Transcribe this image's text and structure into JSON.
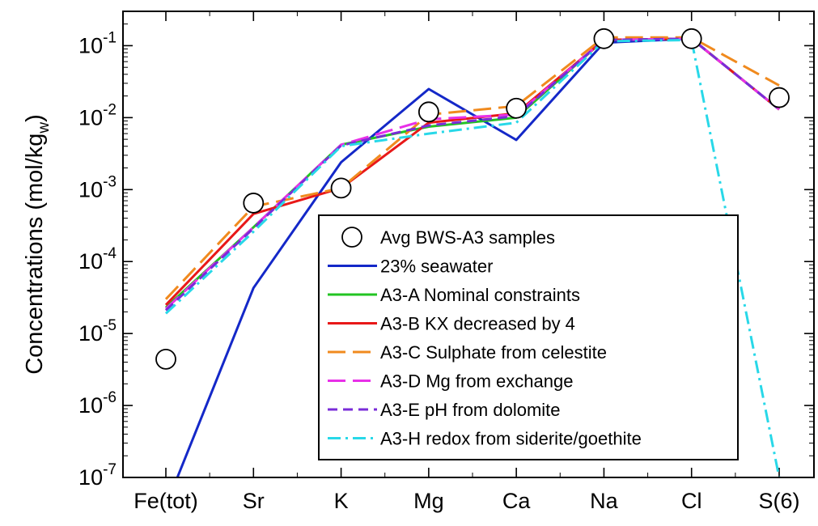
{
  "chart_data": {
    "type": "line",
    "title": "",
    "xlabel": "",
    "ylabel": "Concentrations (mol/kg",
    "ylabel_sub": "w",
    "ylabel_end": ")",
    "yscale": "log",
    "ylim": [
      1e-07,
      0.3
    ],
    "categories": [
      "Fe(tot)",
      "Sr",
      "K",
      "Mg",
      "Ca",
      "Na",
      "Cl",
      "S(6)"
    ],
    "yticks": [
      {
        "value": 1e-07,
        "exp": "-7"
      },
      {
        "value": 1e-06,
        "exp": "-6"
      },
      {
        "value": 1e-05,
        "exp": "-5"
      },
      {
        "value": 0.0001,
        "exp": "-4"
      },
      {
        "value": 0.001,
        "exp": "-3"
      },
      {
        "value": 0.01,
        "exp": "-2"
      },
      {
        "value": 0.1,
        "exp": "-1"
      }
    ],
    "ytick_base": "10",
    "grid": false,
    "legend_position": "lower-center",
    "series": [
      {
        "name": "Avg BWS-A3 samples",
        "kind": "marker",
        "color": "#000000",
        "values": [
          4.4e-06,
          0.00065,
          0.00105,
          0.012,
          0.0135,
          0.125,
          0.125,
          0.019
        ]
      },
      {
        "name": "23% seawater",
        "kind": "line",
        "color": "#1428c8",
        "dash": "solid",
        "values": [
          4e-08,
          4.3e-05,
          0.0024,
          0.025,
          0.0049,
          0.11,
          0.125,
          0.013
        ]
      },
      {
        "name": "A3-A Nominal constraints",
        "kind": "line",
        "color": "#22c422",
        "dash": "solid",
        "values": [
          2.3e-05,
          0.0003,
          0.0042,
          0.0075,
          0.01,
          0.12,
          0.125,
          0.013
        ]
      },
      {
        "name": "A3-B KX decreased by 4",
        "kind": "line",
        "color": "#e81818",
        "dash": "solid",
        "values": [
          2.5e-05,
          0.00046,
          0.00105,
          0.0085,
          0.0115,
          0.12,
          0.125,
          0.013
        ]
      },
      {
        "name": "A3-C Sulphate from celestite",
        "kind": "line",
        "color": "#f08a1e",
        "dash": "long",
        "values": [
          3e-05,
          0.00058,
          0.00105,
          0.011,
          0.0145,
          0.13,
          0.13,
          0.028
        ]
      },
      {
        "name": "A3-D Mg from exchange",
        "kind": "line",
        "color": "#e830e8",
        "dash": "long",
        "values": [
          2.2e-05,
          0.0003,
          0.0042,
          0.0095,
          0.011,
          0.12,
          0.125,
          0.013
        ]
      },
      {
        "name": "A3-E pH from dolomite",
        "kind": "line",
        "color": "#7a2cd8",
        "dash": "medium",
        "values": [
          2.1e-05,
          0.00029,
          0.0041,
          0.0078,
          0.0105,
          0.12,
          0.125,
          0.013
        ]
      },
      {
        "name": "A3-H redox from siderite/goethite",
        "kind": "line",
        "color": "#28d8e8",
        "dash": "dashdot",
        "values": [
          1.9e-05,
          0.00026,
          0.004,
          0.006,
          0.0085,
          0.115,
          0.12,
          1e-07
        ]
      }
    ]
  }
}
